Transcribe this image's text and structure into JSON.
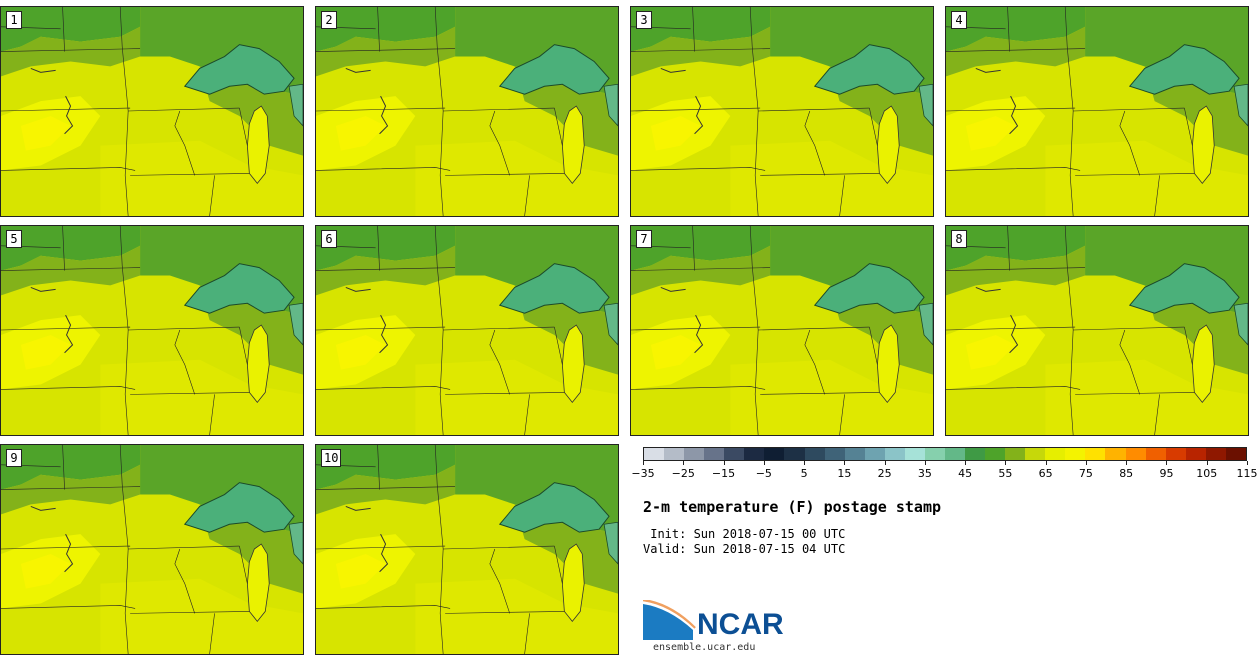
{
  "panels": [
    {
      "label": "1"
    },
    {
      "label": "2"
    },
    {
      "label": "3"
    },
    {
      "label": "4"
    },
    {
      "label": "5"
    },
    {
      "label": "6"
    },
    {
      "label": "7"
    },
    {
      "label": "8"
    },
    {
      "label": "9"
    },
    {
      "label": "10"
    }
  ],
  "colorbar": {
    "colors": [
      "#d9dee6",
      "#b4bcc8",
      "#8d97a8",
      "#67738a",
      "#3b4a63",
      "#1c2a42",
      "#0f1e33",
      "#1d3045",
      "#2e4a5f",
      "#3f6378",
      "#558294",
      "#6ea3b0",
      "#8bc4c8",
      "#a6e2d8",
      "#86d0ad",
      "#63b888",
      "#3f9a45",
      "#4ea32a",
      "#83b21a",
      "#c6d80a",
      "#e6ee00",
      "#f4f300",
      "#ffe100",
      "#ffb300",
      "#ff8c00",
      "#f06000",
      "#d83b00",
      "#b82400",
      "#8f1800",
      "#6b1000"
    ],
    "tick_labels": [
      "−35",
      "−25",
      "−15",
      "−5",
      "5",
      "15",
      "25",
      "35",
      "45",
      "55",
      "65",
      "75",
      "85",
      "95",
      "105",
      "115"
    ]
  },
  "title": "2-m temperature (F) postage stamp",
  "init_text": " Init: Sun 2018-07-15 00 UTC",
  "valid_text": "Valid: Sun 2018-07-15 04 UTC",
  "logo": {
    "text": "NCAR",
    "url": "ensemble.ucar.edu"
  }
}
